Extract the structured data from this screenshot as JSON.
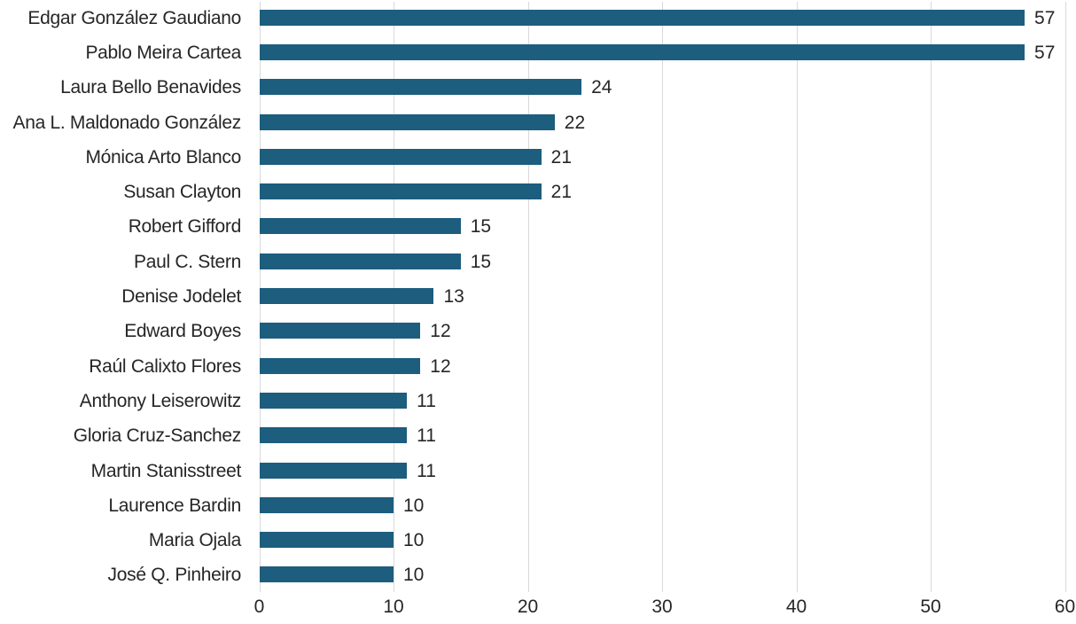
{
  "chart_data": {
    "type": "bar",
    "orientation": "horizontal",
    "title": "",
    "xlabel": "",
    "ylabel": "",
    "categories": [
      "Edgar González Gaudiano",
      "Pablo Meira Cartea",
      "Laura Bello Benavides",
      "Ana L. Maldonado González",
      "Mónica Arto Blanco",
      "Susan Clayton",
      "Robert Gifford",
      "Paul C. Stern",
      "Denise Jodelet",
      "Edward Boyes",
      "Raúl Calixto Flores",
      "Anthony Leiserowitz",
      "Gloria Cruz-Sanchez",
      "Martin Stanisstreet",
      "Laurence Bardin",
      "Maria Ojala",
      "José Q. Pinheiro"
    ],
    "values": [
      57,
      57,
      24,
      22,
      21,
      21,
      15,
      15,
      13,
      12,
      12,
      11,
      11,
      11,
      10,
      10,
      10
    ],
    "value_labels": [
      "57",
      "57",
      "24",
      "22",
      "21",
      "21",
      "15",
      "15",
      "13",
      "12",
      "12",
      "11",
      "11",
      "11",
      "10",
      "10",
      "10"
    ],
    "xlim": [
      0,
      60
    ],
    "xticks": [
      0,
      10,
      20,
      30,
      40,
      50,
      60
    ],
    "xtick_labels": [
      "0",
      "10",
      "20",
      "30",
      "40",
      "50",
      "60"
    ],
    "grid": "vertical",
    "legend": "none",
    "bar_color": "#1d5d7e",
    "gridline_color": "#d9d9d9",
    "text_color": "#262626",
    "background_color": "#ffffff"
  }
}
